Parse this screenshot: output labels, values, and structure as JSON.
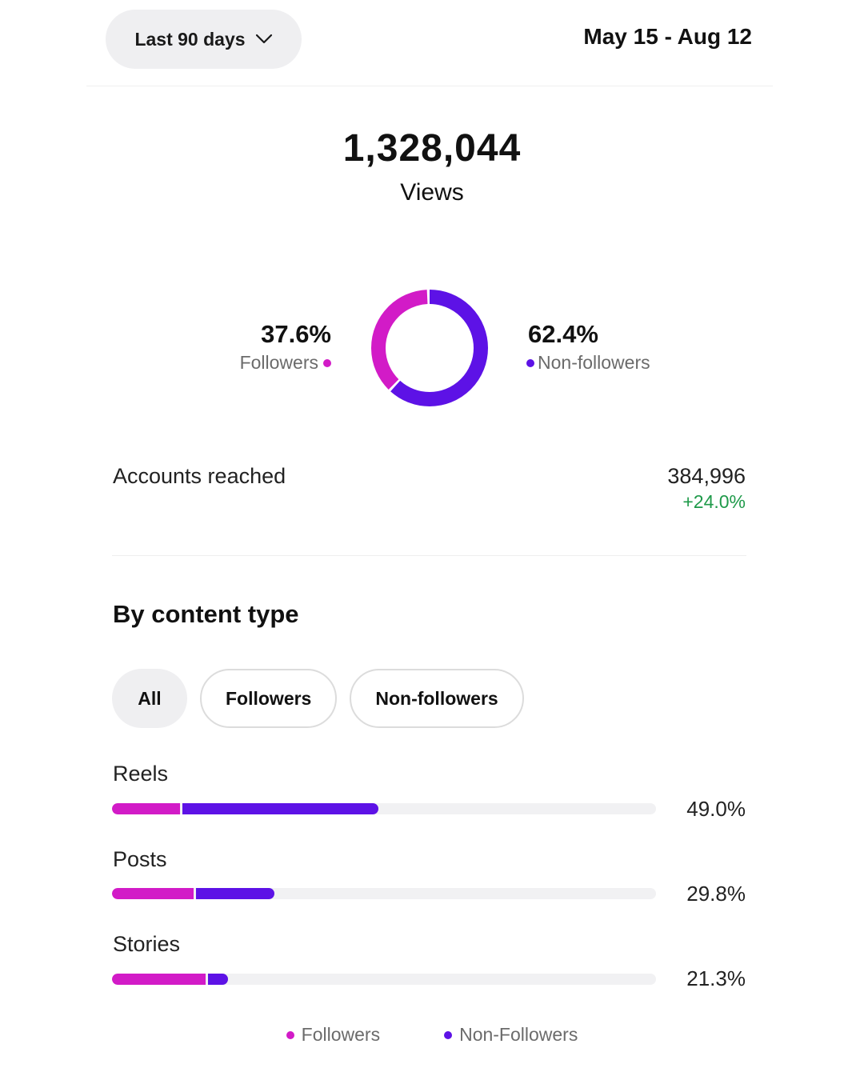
{
  "header": {
    "range_label": "Last 90 days",
    "date_range": "May 15 - Aug 12"
  },
  "views": {
    "value": "1,328,044",
    "label": "Views"
  },
  "split": {
    "followers_pct": "37.6%",
    "followers_label": "Followers",
    "followers_value": 37.6,
    "non_followers_pct": "62.4%",
    "non_followers_label": "Non-followers",
    "non_followers_value": 62.4
  },
  "accounts_reached": {
    "label": "Accounts reached",
    "value": "384,996",
    "delta": "+24.0%"
  },
  "content_type": {
    "title": "By content type",
    "filters": [
      "All",
      "Followers",
      "Non-followers"
    ],
    "rows": [
      {
        "label": "Reels",
        "pct": "49.0%",
        "followers_share": 12.5,
        "non_followers_share": 36.5
      },
      {
        "label": "Posts",
        "pct": "29.8%",
        "followers_share": 15.0,
        "non_followers_share": 14.8
      },
      {
        "label": "Stories",
        "pct": "21.3%",
        "followers_share": 17.2,
        "non_followers_share": 4.1
      }
    ],
    "legend": [
      "Followers",
      "Non-Followers"
    ]
  },
  "colors": {
    "followers": "#d21bc7",
    "non_followers": "#5d12e6",
    "positive": "#1f9a4a"
  },
  "icons": {
    "range_toggle": "chevron-down-icon"
  }
}
